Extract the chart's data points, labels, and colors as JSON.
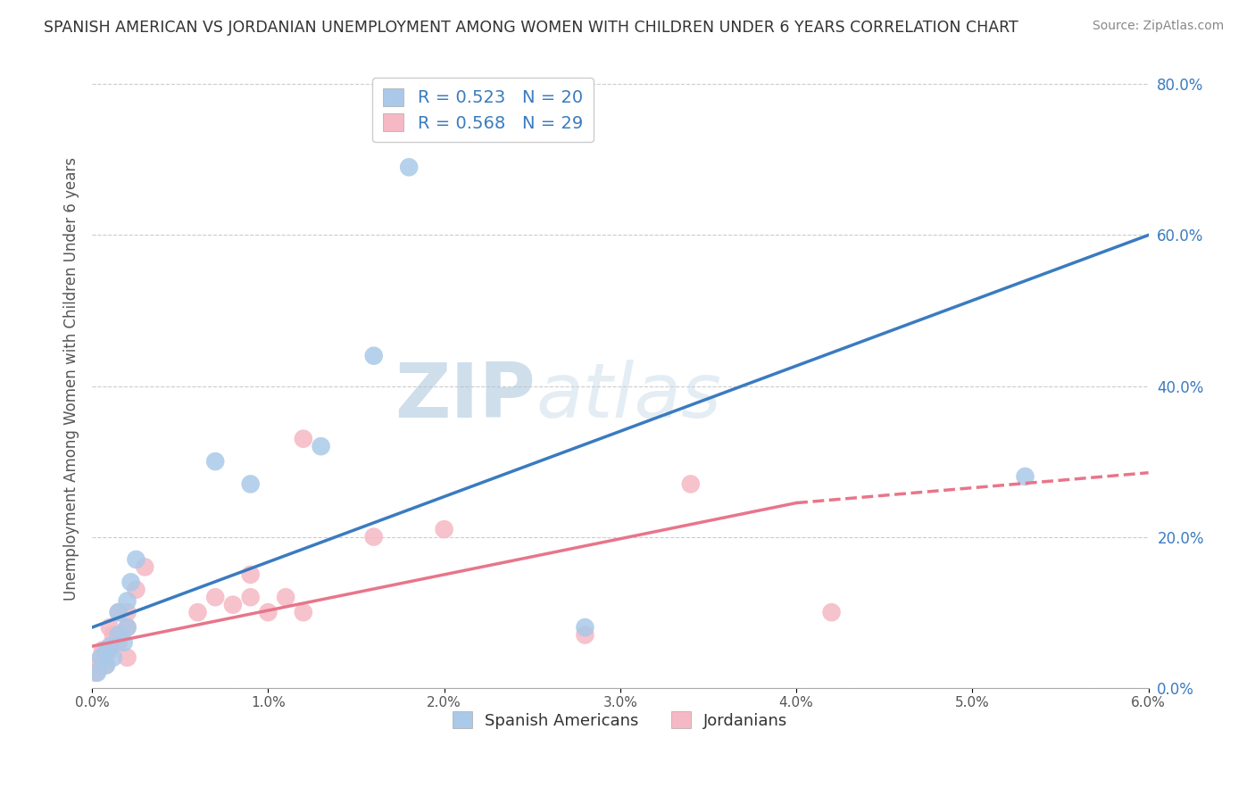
{
  "title": "SPANISH AMERICAN VS JORDANIAN UNEMPLOYMENT AMONG WOMEN WITH CHILDREN UNDER 6 YEARS CORRELATION CHART",
  "source": "Source: ZipAtlas.com",
  "ylabel": "Unemployment Among Women with Children Under 6 years",
  "xlabel": "",
  "xlim": [
    0.0,
    0.06
  ],
  "ylim": [
    0.0,
    0.82
  ],
  "xticks": [
    0.0,
    0.01,
    0.02,
    0.03,
    0.04,
    0.05,
    0.06
  ],
  "xticklabels": [
    "0.0%",
    "1.0%",
    "2.0%",
    "3.0%",
    "4.0%",
    "5.0%",
    "6.0%"
  ],
  "ytick_right_positions": [
    0.0,
    0.2,
    0.4,
    0.6,
    0.8
  ],
  "ytick_right_labels": [
    "0.0%",
    "20.0%",
    "40.0%",
    "60.0%",
    "80.0%"
  ],
  "blue_R": "0.523",
  "blue_N": "20",
  "pink_R": "0.568",
  "pink_N": "29",
  "blue_color": "#aac9e8",
  "pink_color": "#f5b8c4",
  "blue_line_color": "#3a7bbf",
  "pink_line_color": "#e8758a",
  "legend_label_blue": "Spanish Americans",
  "legend_label_pink": "Jordanians",
  "watermark_zip": "ZIP",
  "watermark_atlas": "atlas",
  "blue_line_x0": 0.0,
  "blue_line_y0": 0.08,
  "blue_line_x1": 0.06,
  "blue_line_y1": 0.6,
  "pink_line_x0": 0.0,
  "pink_line_y0": 0.055,
  "pink_line_x1_solid": 0.04,
  "pink_line_y1_solid": 0.245,
  "pink_line_x1_dash": 0.06,
  "pink_line_y1_dash": 0.285,
  "blue_x": [
    0.0003,
    0.0005,
    0.0008,
    0.0008,
    0.001,
    0.0012,
    0.0015,
    0.0015,
    0.0018,
    0.002,
    0.002,
    0.0022,
    0.0025,
    0.007,
    0.009,
    0.013,
    0.016,
    0.018,
    0.028,
    0.053
  ],
  "blue_y": [
    0.02,
    0.04,
    0.03,
    0.05,
    0.055,
    0.04,
    0.07,
    0.1,
    0.06,
    0.08,
    0.115,
    0.14,
    0.17,
    0.3,
    0.27,
    0.32,
    0.44,
    0.69,
    0.08,
    0.28
  ],
  "pink_x": [
    0.0002,
    0.0004,
    0.0005,
    0.0006,
    0.0008,
    0.001,
    0.001,
    0.0012,
    0.0015,
    0.0015,
    0.002,
    0.002,
    0.002,
    0.0025,
    0.003,
    0.006,
    0.007,
    0.008,
    0.009,
    0.009,
    0.01,
    0.011,
    0.012,
    0.012,
    0.016,
    0.02,
    0.028,
    0.034,
    0.042
  ],
  "pink_y": [
    0.02,
    0.03,
    0.04,
    0.05,
    0.03,
    0.05,
    0.08,
    0.07,
    0.06,
    0.1,
    0.04,
    0.08,
    0.1,
    0.13,
    0.16,
    0.1,
    0.12,
    0.11,
    0.12,
    0.15,
    0.1,
    0.12,
    0.1,
    0.33,
    0.2,
    0.21,
    0.07,
    0.27,
    0.1
  ]
}
